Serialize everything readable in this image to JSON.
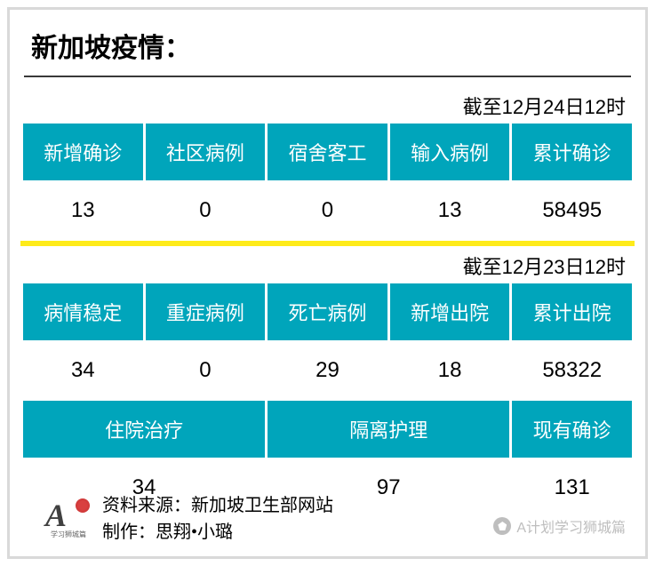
{
  "title": "新加坡疫情：",
  "timestamp1": "截至12月24日12时",
  "table1": {
    "headers": [
      "新增确诊",
      "社区病例",
      "宿舍客工",
      "输入病例",
      "累计确诊"
    ],
    "values": [
      "13",
      "0",
      "0",
      "13",
      "58495"
    ]
  },
  "timestamp2": "截至12月23日12时",
  "table2a": {
    "headers": [
      "病情稳定",
      "重症病例",
      "死亡病例",
      "新增出院",
      "累计出院"
    ],
    "values": [
      "34",
      "0",
      "29",
      "18",
      "58322"
    ]
  },
  "table2b": {
    "headers": [
      "住院治疗",
      "隔离护理",
      "现有确诊"
    ],
    "values": [
      "34",
      "97",
      "131"
    ]
  },
  "footer": {
    "source_label": "资料来源：新加坡卫生部网站",
    "author_label": "制作：思翔•小璐",
    "logo_sub": "学习狮城篇"
  },
  "watermark": "A计划学习狮城篇",
  "colors": {
    "header_bg": "#00a5bb",
    "header_text": "#ffffff",
    "value_text": "#000000",
    "divider": "#feeb1a",
    "frame": "#d9d9d9"
  }
}
